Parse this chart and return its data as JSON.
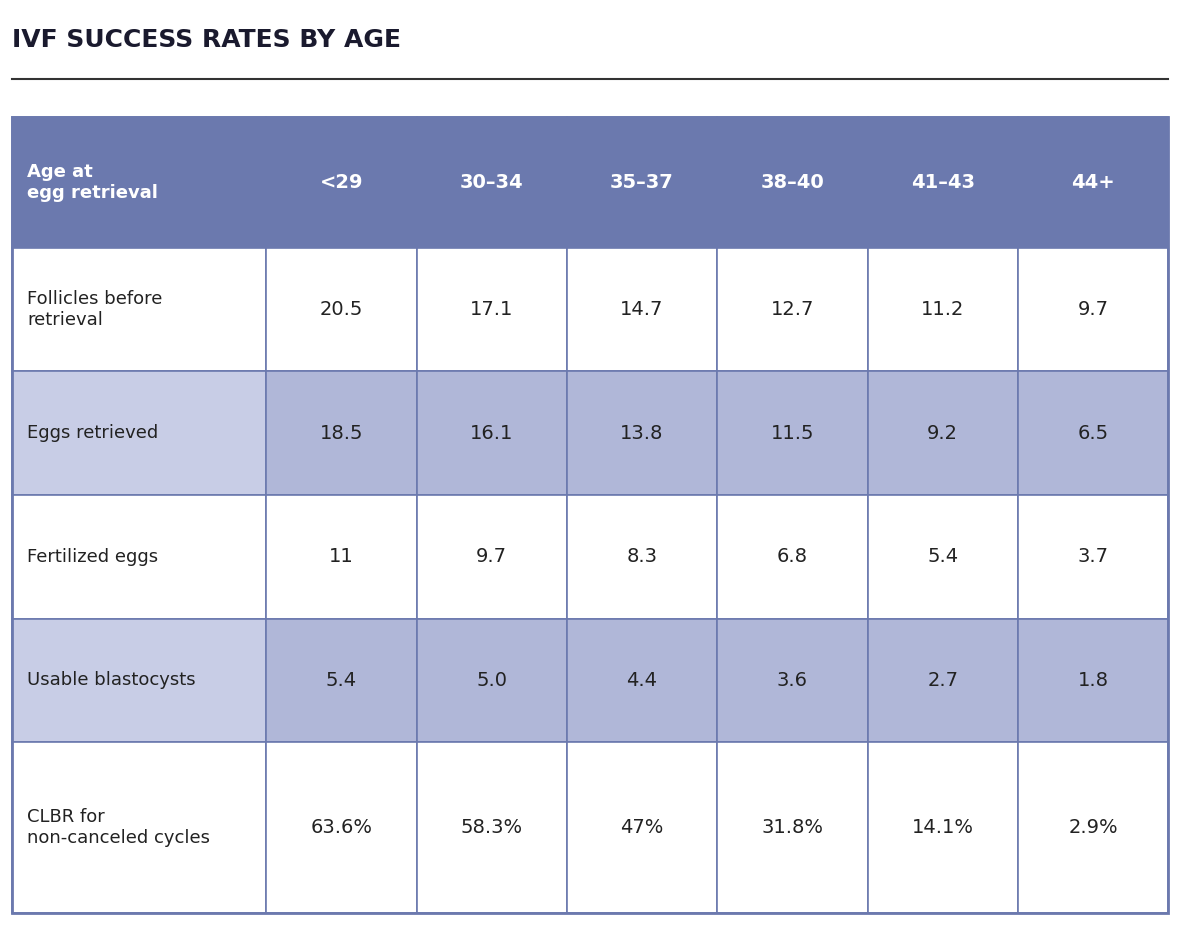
{
  "title": "IVF SUCCESS RATES BY AGE",
  "header_row": [
    "Age at\negg retrieval",
    "<29",
    "30–34",
    "35–37",
    "38–40",
    "41–43",
    "44+"
  ],
  "row_labels": [
    "Follicles before\nretrieval",
    "Eggs retrieved",
    "Fertilized eggs",
    "Usable blastocysts",
    "CLBR for\nnon-canceled cycles"
  ],
  "data": [
    [
      "20.5",
      "17.1",
      "14.7",
      "12.7",
      "11.2",
      "9.7"
    ],
    [
      "18.5",
      "16.1",
      "13.8",
      "11.5",
      "9.2",
      "6.5"
    ],
    [
      "11",
      "9.7",
      "8.3",
      "6.8",
      "5.4",
      "3.7"
    ],
    [
      "5.4",
      "5.0",
      "4.4",
      "3.6",
      "2.7",
      "1.8"
    ],
    [
      "63.6%",
      "58.3%",
      "47%",
      "31.8%",
      "14.1%",
      "2.9%"
    ]
  ],
  "header_bg_color": "#6b79ae",
  "header_text_color": "#ffffff",
  "row_even_bg": "#c8cde6",
  "row_odd_bg": "#ffffff",
  "data_cell_even_bg": "#b0b7d8",
  "data_cell_odd_bg": "#ffffff",
  "text_color": "#222222",
  "title_color": "#1a1a2e",
  "border_color": "#6b79ae",
  "line_color": "#333333",
  "bg_color": "#ffffff"
}
